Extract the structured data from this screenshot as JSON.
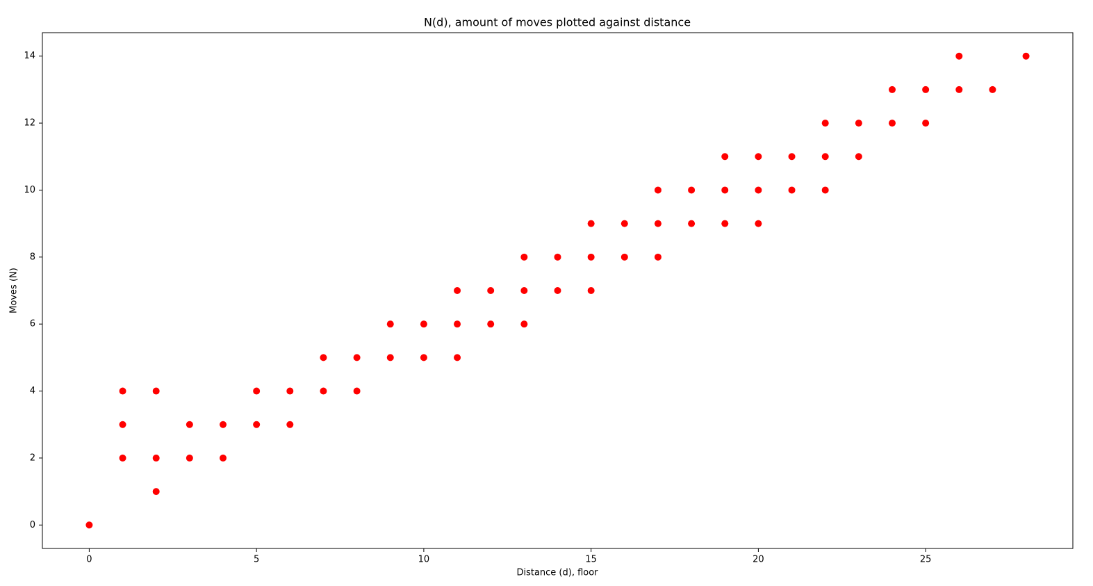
{
  "chart_data": {
    "type": "scatter",
    "title": "N(d), amount of moves plotted against distance",
    "x_label": "Distance (d), floor",
    "y_label": "Moves (N)",
    "color": "#ff0000",
    "x": [
      0,
      1,
      1,
      1,
      2,
      2,
      2,
      3,
      3,
      4,
      4,
      5,
      5,
      6,
      6,
      7,
      7,
      8,
      8,
      9,
      9,
      10,
      10,
      11,
      11,
      11,
      12,
      12,
      13,
      13,
      13,
      14,
      14,
      15,
      15,
      15,
      16,
      16,
      17,
      17,
      17,
      18,
      18,
      19,
      19,
      19,
      20,
      20,
      20,
      21,
      21,
      22,
      22,
      22,
      23,
      23,
      24,
      24,
      25,
      25,
      26,
      26,
      27,
      28
    ],
    "values": [
      0,
      2,
      3,
      4,
      1,
      2,
      4,
      2,
      3,
      2,
      3,
      3,
      4,
      3,
      4,
      4,
      5,
      4,
      5,
      5,
      6,
      5,
      6,
      5,
      6,
      7,
      6,
      7,
      6,
      7,
      8,
      7,
      8,
      7,
      8,
      9,
      8,
      9,
      8,
      9,
      10,
      9,
      10,
      9,
      10,
      11,
      9,
      10,
      11,
      10,
      11,
      10,
      11,
      12,
      11,
      12,
      12,
      13,
      12,
      13,
      13,
      14,
      13,
      14
    ],
    "xlim": [
      -1.4,
      29.4
    ],
    "ylim": [
      -0.7,
      14.7
    ],
    "xticks": [
      0,
      5,
      10,
      15,
      20,
      25
    ],
    "yticks": [
      0,
      2,
      4,
      6,
      8,
      10,
      12,
      14
    ]
  }
}
